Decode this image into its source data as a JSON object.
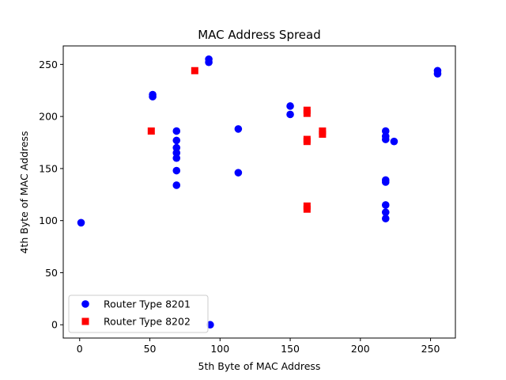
{
  "chart_data": {
    "type": "scatter",
    "title": "MAC Address Spread",
    "xlabel": "5th Byte of MAC Address",
    "ylabel": "4th Byte of MAC Address",
    "xlim": [
      -11.7,
      267.7
    ],
    "ylim": [
      -12.75,
      267.75
    ],
    "xticks": [
      0,
      50,
      100,
      150,
      200,
      250
    ],
    "yticks": [
      0,
      50,
      100,
      150,
      200,
      250
    ],
    "grid": false,
    "legend_position": "lower-left",
    "series": [
      {
        "name": "Router Type 8201",
        "marker": "circle",
        "color": "#0000ff",
        "points": [
          [
            1,
            98
          ],
          [
            52,
            219
          ],
          [
            52,
            221
          ],
          [
            69,
            186
          ],
          [
            69,
            177
          ],
          [
            69,
            170
          ],
          [
            69,
            165
          ],
          [
            69,
            160
          ],
          [
            69,
            148
          ],
          [
            69,
            134
          ],
          [
            92,
            252
          ],
          [
            92,
            255
          ],
          [
            93,
            0
          ],
          [
            113,
            188
          ],
          [
            113,
            146
          ],
          [
            150,
            210
          ],
          [
            150,
            202
          ],
          [
            218,
            186
          ],
          [
            218,
            181
          ],
          [
            218,
            178
          ],
          [
            218,
            139
          ],
          [
            218,
            137
          ],
          [
            218,
            115
          ],
          [
            218,
            108
          ],
          [
            218,
            102
          ],
          [
            224,
            176
          ],
          [
            255,
            241
          ],
          [
            255,
            244
          ]
        ]
      },
      {
        "name": "Router Type 8202",
        "marker": "square",
        "color": "#ff0000",
        "points": [
          [
            51,
            186
          ],
          [
            82,
            244
          ],
          [
            162,
            206
          ],
          [
            162,
            203
          ],
          [
            162,
            178
          ],
          [
            162,
            176
          ],
          [
            162,
            114
          ],
          [
            162,
            111
          ],
          [
            173,
            186
          ],
          [
            173,
            183
          ]
        ]
      }
    ]
  }
}
